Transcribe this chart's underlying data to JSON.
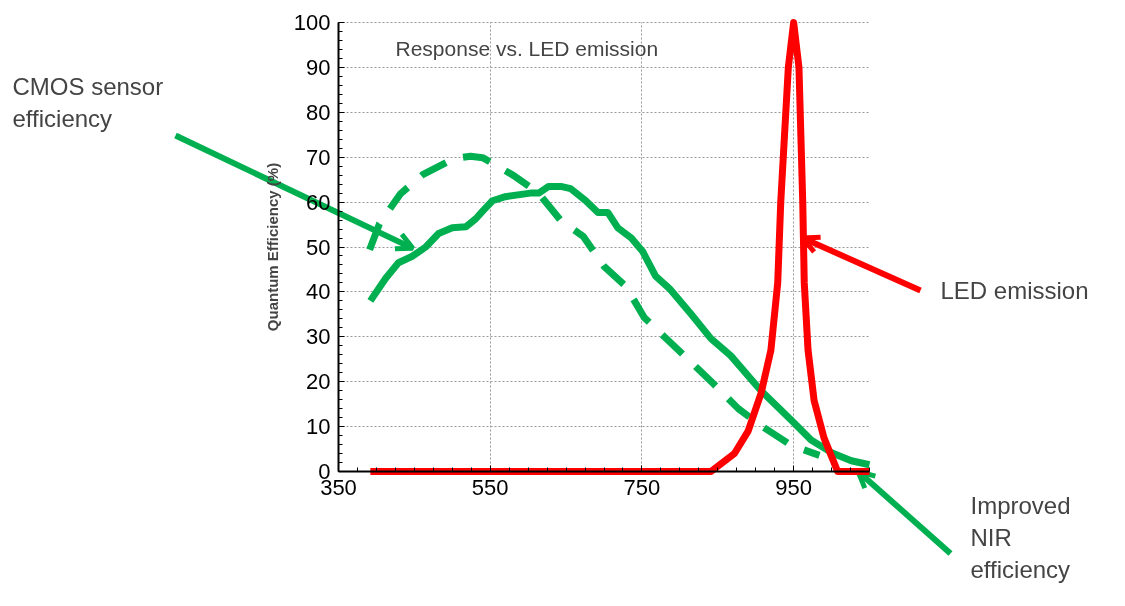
{
  "chart_data": {
    "type": "line",
    "title": "Response vs. LED emission",
    "ylabel": "Quantum Efficiency (%)",
    "xlim": [
      350,
      1050
    ],
    "xticks": [
      350,
      550,
      750,
      950
    ],
    "ylim": [
      0,
      100
    ],
    "yticks": [
      0,
      10,
      20,
      30,
      40,
      50,
      60,
      70,
      80,
      90,
      100
    ],
    "grid": true,
    "marker": "none",
    "series": [
      {
        "color": "#00b050",
        "line_style": "solid",
        "x": [
          392,
          412,
          429,
          448,
          465,
          482,
          500,
          518,
          531,
          540,
          553,
          570,
          603,
          614,
          627,
          643,
          656,
          676,
          692,
          705,
          718,
          736,
          751,
          768,
          786,
          815,
          841,
          867,
          907,
          947,
          973,
          1000,
          1026,
          1050
        ],
        "values": [
          38,
          43,
          46.5,
          48,
          50,
          53,
          54.3,
          54.5,
          56.3,
          58,
          60.3,
          61.2,
          62,
          62,
          63.5,
          63.5,
          63,
          60.3,
          57.7,
          57.7,
          54.3,
          52,
          49,
          43.5,
          40.8,
          35,
          29.6,
          25.8,
          18,
          11.4,
          7,
          4.2,
          2.4,
          1.5
        ]
      },
      {
        "color": "#00b050",
        "line_style": "dashed",
        "x": [
          391,
          404,
          432,
          461,
          502,
          524,
          540,
          581,
          613,
          643,
          673,
          700,
          729,
          753,
          782,
          815,
          844,
          877,
          907,
          947,
          984
        ],
        "values": [
          49.4,
          55.2,
          61.9,
          66.1,
          69.7,
          70.2,
          69.9,
          65.9,
          62.1,
          55.9,
          52.3,
          45.7,
          41.2,
          34.3,
          29.6,
          24.3,
          19.6,
          14,
          10.2,
          5.8,
          3.6
        ]
      },
      {
        "color": "#ff0000",
        "line_style": "solid",
        "x": [
          392,
          841,
          872,
          890,
          907,
          920,
          929,
          933,
          943,
          950,
          957,
          962,
          964,
          969,
          977,
          990,
          1008,
          1050
        ],
        "values": [
          0,
          0,
          4,
          9,
          17.4,
          27,
          42,
          60,
          90,
          100,
          90,
          60,
          42,
          27,
          15.8,
          7.5,
          0,
          0
        ]
      }
    ],
    "annotations": [
      {
        "text": "CMOS sensor efficiency",
        "x": 448,
        "y": 49.7
      },
      {
        "text": "Improved NIR efficiency",
        "x": 1035,
        "y": 0
      },
      {
        "text": "LED emission",
        "x": 962,
        "y": 52
      }
    ]
  }
}
